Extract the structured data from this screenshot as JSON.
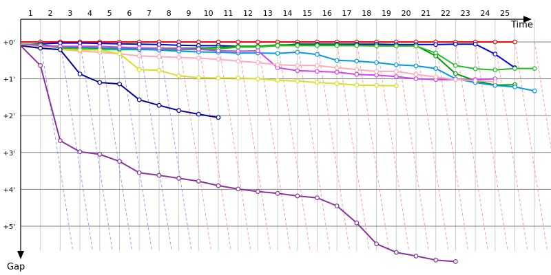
{
  "chart_data": {
    "type": "line",
    "title": "",
    "xlabel": "Time",
    "ylabel": "Gap",
    "x_labels": [
      "1",
      "2",
      "3",
      "4",
      "5",
      "6",
      "7",
      "8",
      "9",
      "10",
      "11",
      "12",
      "13",
      "14",
      "15",
      "16",
      "17",
      "18",
      "19",
      "20",
      "21",
      "22",
      "23",
      "24",
      "25"
    ],
    "y_tick_labels": [
      {
        "value": 0,
        "label": "+0'"
      },
      {
        "value": 1,
        "label": "+1'"
      },
      {
        "value": 2,
        "label": "+2'"
      },
      {
        "value": 3,
        "label": "+3'"
      },
      {
        "value": 4,
        "label": "+4'"
      },
      {
        "value": 5,
        "label": "+5'"
      }
    ],
    "ylim": [
      0,
      5.75
    ],
    "xlim": [
      0,
      26
    ],
    "grid": true,
    "lapped_guides": {
      "blue_until_lap": 7,
      "red_from_lap": 7
    },
    "series": [
      {
        "color": "#ff0000",
        "values": [
          0,
          0,
          0,
          0,
          0,
          0,
          0,
          0,
          0,
          0,
          0,
          0,
          0,
          0,
          0,
          0,
          0,
          0,
          0,
          0,
          0,
          0,
          0,
          0,
          0,
          0
        ]
      },
      {
        "color": "#0000dd",
        "values": [
          0.08,
          0.05,
          0.03,
          0.03,
          0.04,
          0.05,
          0.06,
          0.07,
          0.09,
          0.1,
          0.1,
          0.12,
          0.12,
          0.1,
          0.06,
          0.06,
          0.06,
          0.06,
          0.06,
          0.07,
          0.07,
          0.07,
          0.06,
          0.06,
          0.33,
          0.7
        ]
      },
      {
        "color": "#009900",
        "values": [
          0.06,
          0.07,
          0.14,
          0.16,
          0.17,
          0.17,
          0.17,
          0.17,
          0.17,
          0.17,
          0.15,
          0.12,
          0.12,
          0.08,
          0.08,
          0.08,
          0.08,
          0.09,
          0.1,
          0.1,
          0.1,
          0.38,
          0.86,
          1.05,
          1.17,
          1.16
        ]
      },
      {
        "color": "#22bb22",
        "values": [
          0.07,
          0.08,
          0.16,
          0.2,
          0.21,
          0.21,
          0.21,
          0.21,
          0.21,
          0.21,
          0.19,
          0.14,
          0.14,
          0.1,
          0.1,
          0.1,
          0.1,
          0.1,
          0.11,
          0.11,
          0.11,
          0.3,
          0.64,
          0.73,
          0.76,
          0.72,
          0.72
        ]
      },
      {
        "color": "#0099dd",
        "values": [
          0.06,
          0.1,
          0.13,
          0.14,
          0.16,
          0.18,
          0.2,
          0.22,
          0.25,
          0.27,
          0.28,
          0.3,
          0.3,
          0.31,
          0.28,
          0.34,
          0.5,
          0.52,
          0.56,
          0.62,
          0.65,
          0.72,
          1.0,
          1.1,
          1.18,
          1.22,
          1.33
        ]
      },
      {
        "color": "#cc44ee",
        "values": [
          0.07,
          0.1,
          0.12,
          0.12,
          0.12,
          0.14,
          0.16,
          0.17,
          0.18,
          0.2,
          0.24,
          0.25,
          0.24,
          0.7,
          0.78,
          0.8,
          0.82,
          0.88,
          0.9,
          0.94,
          1.0,
          1.02,
          1.02,
          1.02,
          1.0
        ]
      },
      {
        "color": "#ffaabb",
        "values": [
          0.08,
          0.14,
          0.2,
          0.25,
          0.28,
          0.32,
          0.38,
          0.4,
          0.42,
          0.44,
          0.47,
          0.52,
          0.56,
          0.62,
          0.64,
          0.64,
          0.7,
          0.75,
          0.8,
          0.8,
          0.88,
          0.95,
          1.02,
          1.05,
          1.08
        ]
      },
      {
        "color": "#dddd22",
        "values": [
          0.09,
          0.16,
          0.2,
          0.22,
          0.22,
          0.32,
          0.75,
          0.77,
          0.92,
          0.97,
          0.98,
          0.98,
          1.0,
          1.04,
          1.06,
          1.1,
          1.13,
          1.17,
          1.18,
          1.19
        ]
      },
      {
        "color": "#000099",
        "values": [
          0.1,
          0.17,
          0.21,
          0.87,
          1.1,
          1.14,
          1.57,
          1.72,
          1.86,
          1.96,
          2.05
        ]
      },
      {
        "color": "#883399",
        "values": [
          0.1,
          0.64,
          2.68,
          2.98,
          3.05,
          3.24,
          3.55,
          3.62,
          3.7,
          3.78,
          3.9,
          3.99,
          4.06,
          4.11,
          4.18,
          4.23,
          4.45,
          4.91,
          5.48,
          5.71,
          5.81,
          5.92,
          5.96
        ]
      }
    ]
  }
}
